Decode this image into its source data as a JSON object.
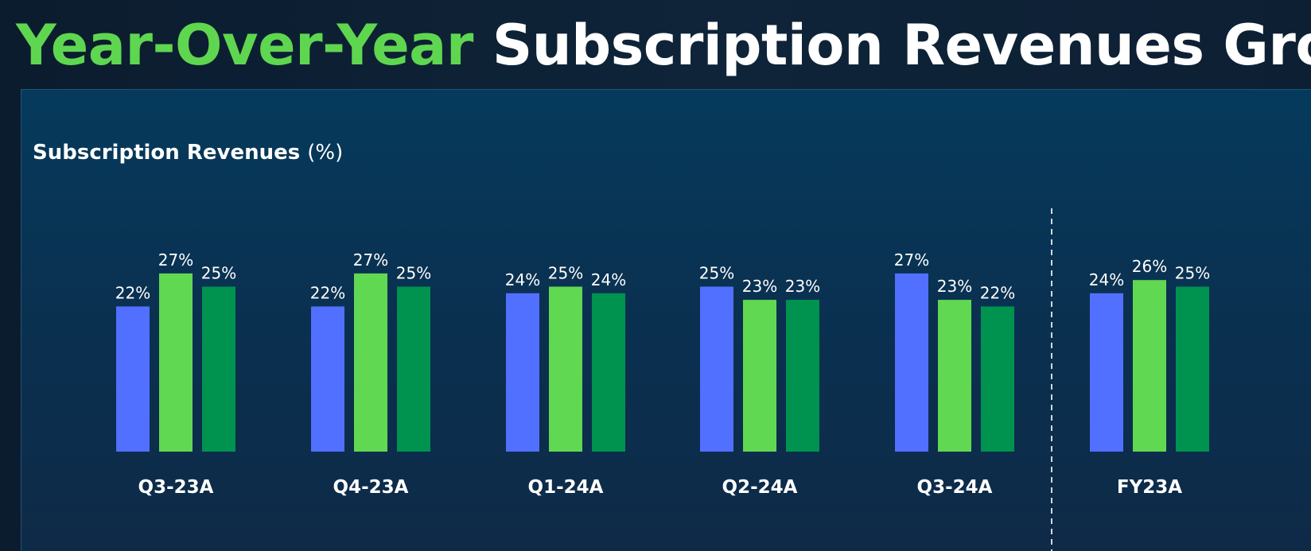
{
  "header": {
    "title_highlight": "Year-Over-Year",
    "title_rest": "Subscription Revenues Growth"
  },
  "panel": {
    "title_bold": "Subscription Revenues",
    "title_unit": "(%)"
  },
  "colors": {
    "series": [
      "#5170ff",
      "#60d851",
      "#00924f"
    ],
    "highlight": "#5fd650",
    "divider": "#cfd8e0"
  },
  "chart_data": {
    "type": "bar",
    "categories": [
      "Q3-23A",
      "Q4-23A",
      "Q1-24A",
      "Q2-24A",
      "Q3-24A",
      "FY23A"
    ],
    "series": [
      {
        "values": [
          22,
          22,
          24,
          25,
          27,
          24
        ]
      },
      {
        "values": [
          27,
          27,
          25,
          23,
          23,
          26
        ]
      },
      {
        "values": [
          25,
          25,
          24,
          23,
          22,
          25
        ]
      }
    ],
    "value_labels": [
      [
        "22%",
        "22%",
        "24%",
        "25%",
        "27%",
        "24%"
      ],
      [
        "27%",
        "27%",
        "25%",
        "23%",
        "23%",
        "26%"
      ],
      [
        "25%",
        "25%",
        "24%",
        "23%",
        "22%",
        "25%"
      ]
    ],
    "ylim": [
      0,
      27
    ],
    "grid": false,
    "divider_before_category": "FY23A"
  }
}
